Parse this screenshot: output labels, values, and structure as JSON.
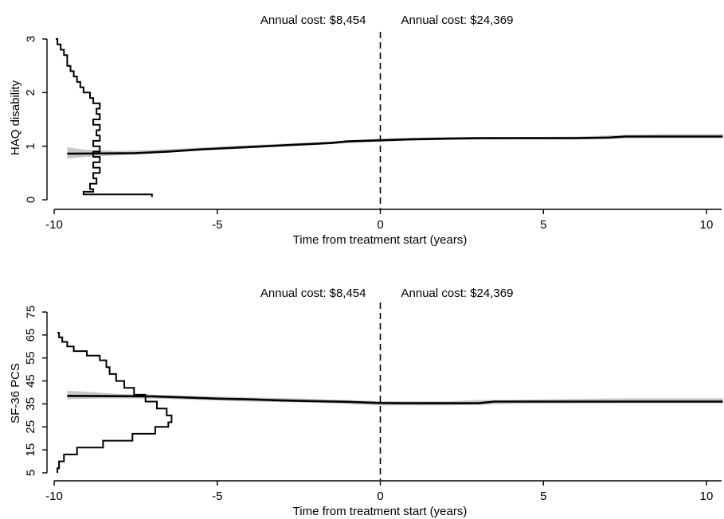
{
  "chart_data": [
    {
      "type": "line",
      "ylabel": "HAQ disability",
      "xlabel": "Time from treatment start (years)",
      "xlim": [
        -10,
        10.5
      ],
      "ylim": [
        0,
        3
      ],
      "x_ticks": [
        -10,
        -5,
        0,
        5,
        10
      ],
      "x_tick_labels": [
        "-10",
        "-5",
        "0",
        "5",
        "10"
      ],
      "y_ticks": [
        0,
        1,
        2,
        3
      ],
      "y_tick_labels": [
        "0",
        "1",
        "2",
        "3"
      ],
      "annotations": [
        "Annual cost: $8,454",
        "Annual cost: $24,369"
      ],
      "reference_line_x": 0,
      "grid": false,
      "series": [
        {
          "style": "line",
          "x": [
            -9.6,
            -7.5,
            -6.5,
            -5.5,
            -4.5,
            -3.5,
            -2.5,
            -1.5,
            -1,
            0,
            1,
            2,
            3,
            4,
            5,
            6,
            7,
            7.5,
            8,
            9,
            10,
            10.5
          ],
          "values": [
            0.86,
            0.87,
            0.9,
            0.94,
            0.97,
            1.0,
            1.03,
            1.06,
            1.09,
            1.11,
            1.13,
            1.14,
            1.15,
            1.15,
            1.15,
            1.15,
            1.16,
            1.18,
            1.18,
            1.18,
            1.18,
            1.18
          ]
        },
        {
          "style": "band",
          "x": [
            -9.6,
            -9,
            -8,
            -7,
            -6,
            -4,
            -2,
            0,
            2,
            4,
            6,
            8,
            9,
            10.5
          ],
          "lower": [
            0.77,
            0.8,
            0.83,
            0.87,
            0.91,
            0.97,
            1.02,
            1.09,
            1.12,
            1.13,
            1.13,
            1.15,
            1.15,
            1.15
          ],
          "upper": [
            0.98,
            0.93,
            0.91,
            0.93,
            0.96,
            1.02,
            1.07,
            1.14,
            1.17,
            1.17,
            1.18,
            1.22,
            1.23,
            1.23
          ]
        },
        {
          "style": "distribution",
          "y": [
            0.05,
            0.1,
            0.15,
            0.2,
            0.3,
            0.4,
            0.5,
            0.6,
            0.7,
            0.8,
            0.9,
            1.0,
            1.1,
            1.2,
            1.3,
            1.4,
            1.5,
            1.6,
            1.7,
            1.8,
            1.9,
            2.0,
            2.1,
            2.2,
            2.3,
            2.4,
            2.5,
            2.6,
            2.7,
            2.8,
            2.9,
            3.0
          ],
          "x": [
            -7.0,
            -9.1,
            -8.8,
            -8.9,
            -8.7,
            -8.8,
            -8.6,
            -8.8,
            -8.6,
            -8.8,
            -8.6,
            -8.8,
            -8.6,
            -8.7,
            -8.6,
            -8.8,
            -8.6,
            -8.7,
            -8.6,
            -8.8,
            -8.9,
            -9.1,
            -9.2,
            -9.3,
            -9.4,
            -9.5,
            -9.6,
            -9.6,
            -9.7,
            -9.8,
            -9.9,
            -9.95
          ]
        }
      ]
    },
    {
      "type": "line",
      "ylabel": "SF-36 PCS",
      "xlabel": "Time from treatment start (years)",
      "xlim": [
        -10,
        10.5
      ],
      "ylim": [
        5,
        75
      ],
      "x_ticks": [
        -10,
        -5,
        0,
        5,
        10
      ],
      "x_tick_labels": [
        "-10",
        "-5",
        "0",
        "5",
        "10"
      ],
      "y_ticks": [
        5,
        15,
        25,
        35,
        45,
        55,
        65,
        75
      ],
      "y_tick_labels": [
        "5",
        "15",
        "25",
        "35",
        "45",
        "55",
        "65",
        "75"
      ],
      "annotations": [
        "Annual cost: $8,454",
        "Annual cost: $24,369"
      ],
      "reference_line_x": 0,
      "grid": false,
      "series": [
        {
          "style": "line",
          "x": [
            -9.6,
            -7,
            -6,
            -5,
            -4,
            -3,
            -2,
            -1,
            0,
            1,
            2,
            3,
            3.5,
            5,
            7,
            9,
            10.5
          ],
          "values": [
            38.5,
            38.3,
            37.8,
            37.3,
            37.0,
            36.5,
            36.2,
            35.9,
            35.4,
            35.3,
            35.3,
            35.3,
            36.0,
            36.0,
            36.0,
            36.0,
            36.0
          ]
        },
        {
          "style": "band",
          "x": [
            -9.6,
            -9,
            -8,
            -7,
            -6,
            -4,
            -2,
            0,
            2,
            3,
            4,
            6,
            8,
            10.5
          ],
          "lower": [
            37.0,
            37.3,
            37.4,
            37.3,
            36.9,
            36.0,
            35.5,
            34.4,
            34.4,
            34.6,
            35.0,
            35.2,
            35.3,
            35.3
          ],
          "upper": [
            40.8,
            40.3,
            39.3,
            39.0,
            38.6,
            37.8,
            37.2,
            36.2,
            36.1,
            36.7,
            36.8,
            37.2,
            37.5,
            37.5
          ]
        },
        {
          "style": "distribution",
          "y": [
            5,
            7,
            10,
            13,
            16,
            19,
            22,
            25,
            27,
            30,
            33,
            36,
            39,
            42,
            45,
            48,
            51,
            54,
            56,
            58,
            60,
            62,
            64,
            66
          ],
          "x": [
            -9.9,
            -9.85,
            -9.7,
            -9.3,
            -8.5,
            -7.6,
            -6.9,
            -6.5,
            -6.4,
            -6.55,
            -6.85,
            -7.2,
            -7.55,
            -7.85,
            -8.1,
            -8.3,
            -8.4,
            -8.6,
            -9.0,
            -9.4,
            -9.6,
            -9.75,
            -9.85,
            -9.9
          ]
        }
      ]
    }
  ]
}
